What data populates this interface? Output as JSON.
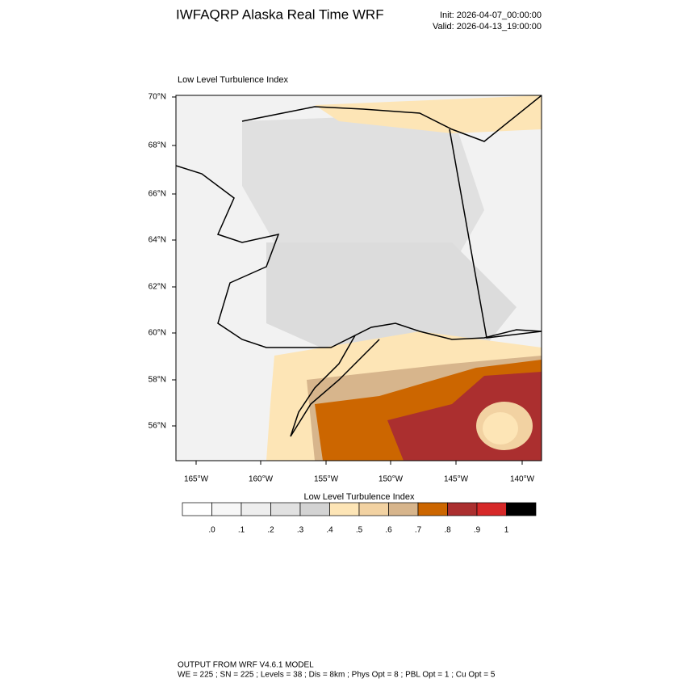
{
  "header": {
    "title": "IWFAQRP Alaska Real Time WRF",
    "init": "Init: 2026-04-07_00:00:00",
    "valid": "Valid: 2026-04-13_19:00:00"
  },
  "map": {
    "title": "Low Level Turbulence Index",
    "lat_labels": [
      "70°N",
      "68°N",
      "66°N",
      "64°N",
      "62°N",
      "60°N",
      "58°N",
      "56°N"
    ],
    "lon_labels": [
      "165°W",
      "160°W",
      "155°W",
      "150°W",
      "145°W",
      "140°W"
    ]
  },
  "colorbar": {
    "title": "Low Level Turbulence Index",
    "colors": [
      "#ffffff",
      "#f7f7f7",
      "#eeeeee",
      "#e1e1e1",
      "#d3d3d3",
      "#fde5b6",
      "#f2d2a2",
      "#d7b58c",
      "#cc6600",
      "#ab2f2f",
      "#d62828",
      "#000000"
    ],
    "labels": [
      ".0",
      ".1",
      ".2",
      ".3",
      ".4",
      ".5",
      ".6",
      ".7",
      ".8",
      ".9",
      "1"
    ]
  },
  "footer": {
    "line1": "OUTPUT FROM WRF V4.6.1 MODEL",
    "line2": "WE = 225 ; SN = 225 ; Levels = 38 ; Dis = 8km ; Phys Opt = 8 ; PBL Opt = 1 ; Cu Opt = 5"
  }
}
